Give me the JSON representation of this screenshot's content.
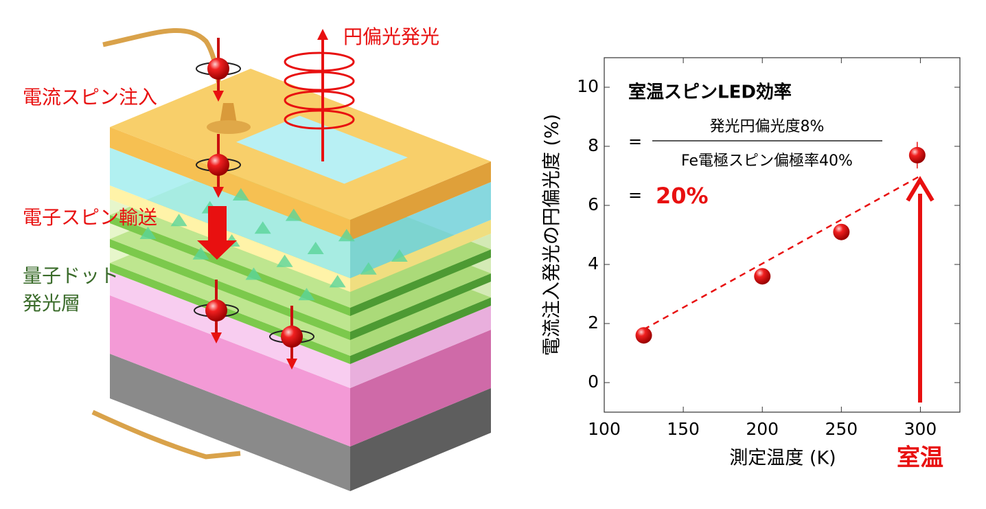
{
  "diagram": {
    "labels": [
      "円偏光発光",
      "電流スピン注入",
      "電子スピン輸送",
      "量子ドット",
      "発光層"
    ]
  },
  "chart_data": {
    "type": "scatter",
    "title": "室温スピンLED効率",
    "formula": {
      "equals": [
        "=",
        "="
      ],
      "numerator": "発光円偏光度8%",
      "denominator": "Fe電極スピン偏極率40%",
      "result": "20%"
    },
    "x": [
      125,
      200,
      250,
      298
    ],
    "values": [
      1.6,
      3.6,
      5.1,
      7.7
    ],
    "errors": [
      0.1,
      0.1,
      0.1,
      0.45
    ],
    "color": "#e81010",
    "fit": {
      "x": [
        125,
        300
      ],
      "values": [
        1.8,
        7.0
      ],
      "color": "#e81010",
      "dashed": true
    },
    "xlabel": "測定温度 (K)",
    "ylabel": "電流注入発光の円偏光度 (%)",
    "annotation": "室温",
    "xlim": [
      100,
      325
    ],
    "ylim": [
      -1,
      11
    ],
    "xticks": [
      100,
      150,
      200,
      250,
      300
    ],
    "yticks": [
      0,
      2,
      4,
      6,
      8,
      10
    ]
  }
}
